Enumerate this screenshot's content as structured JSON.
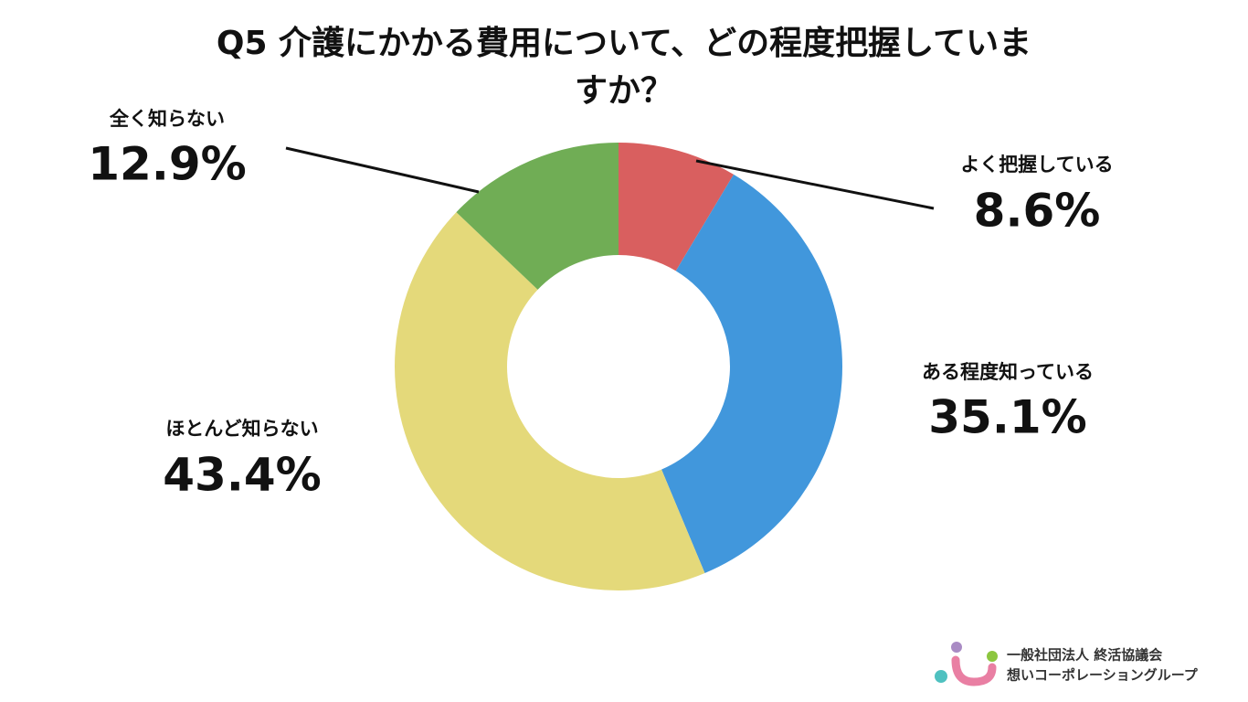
{
  "chart_data": {
    "type": "donut",
    "title": "Q5 介護にかかる費用について、どの程度把握していますか？",
    "categories": [
      "よく把握している",
      "ある程度知っている",
      "ほとんど知らない",
      "全く知らない"
    ],
    "values": [
      8.6,
      35.1,
      43.4,
      12.9
    ],
    "value_labels": [
      "8.6%",
      "35.1%",
      "43.4%",
      "12.9%"
    ],
    "colors": [
      "#d95f5f",
      "#4197dc",
      "#e4d97a",
      "#70ad55"
    ]
  },
  "logo": [
    "一般社団法人 終活協議会",
    "想いコーポレーショングループ"
  ]
}
